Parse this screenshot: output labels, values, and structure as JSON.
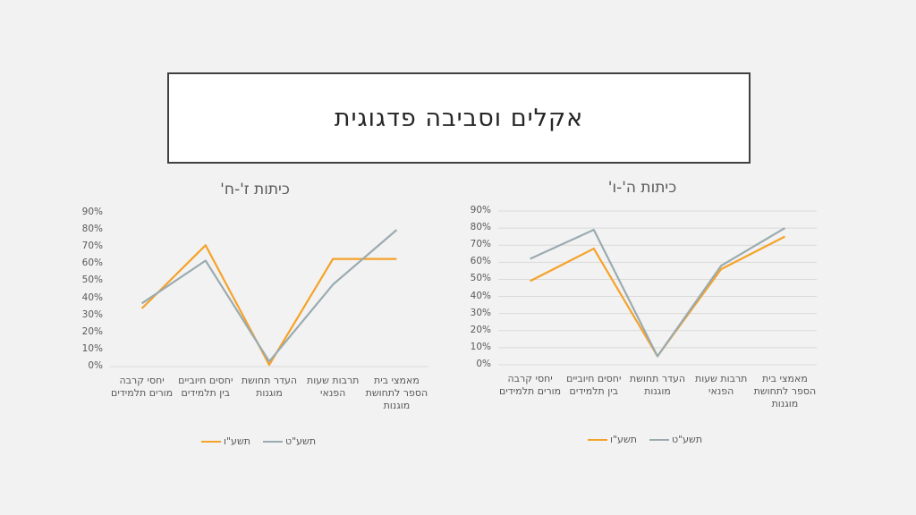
{
  "slide": {
    "title": "אקלים וסביבה פדגוגית"
  },
  "chart_data": [
    {
      "type": "line",
      "title": "כיתות ז'-ח'",
      "categories": [
        "יחסי קרבה מורים תלמידים",
        "יחסים חיוביים בין תלמידים",
        "העדר תחושת מוגנות",
        "תרבות שעות הפנאי",
        "מאמצי בית הספר לתחושת מוגנות"
      ],
      "yticks": [
        "0%",
        "10%",
        "20%",
        "30%",
        "40%",
        "50%",
        "60%",
        "70%",
        "80%",
        "90%"
      ],
      "ylim": [
        0,
        90
      ],
      "grid": false,
      "legend_position": "bottom",
      "series": [
        {
          "name": "תשע\"ו",
          "color": "#f5a229",
          "values": [
            34,
            71,
            1,
            63,
            63
          ]
        },
        {
          "name": "תשע\"ט",
          "color": "#9aabb0",
          "values": [
            37,
            62,
            3,
            48,
            80
          ]
        }
      ]
    },
    {
      "type": "line",
      "title": "כיתות ה'-ו'",
      "categories": [
        "יחסי קרבה מורים תלמידים",
        "יחסים חיוביים בין תלמידים",
        "העדר תחושת מוגנות",
        "תרבות שעות הפנאי",
        "מאמצי בית הספר לתחושת מוגנות"
      ],
      "yticks": [
        "0%",
        "10%",
        "20%",
        "30%",
        "40%",
        "50%",
        "60%",
        "70%",
        "80%",
        "90%"
      ],
      "ylim": [
        0,
        90
      ],
      "grid": true,
      "legend_position": "bottom",
      "series": [
        {
          "name": "תשע\"ו",
          "color": "#f5a229",
          "values": [
            49,
            68,
            5,
            56,
            75
          ]
        },
        {
          "name": "תשע\"ט",
          "color": "#9aabb0",
          "values": [
            62,
            79,
            5,
            58,
            80
          ]
        }
      ]
    }
  ]
}
